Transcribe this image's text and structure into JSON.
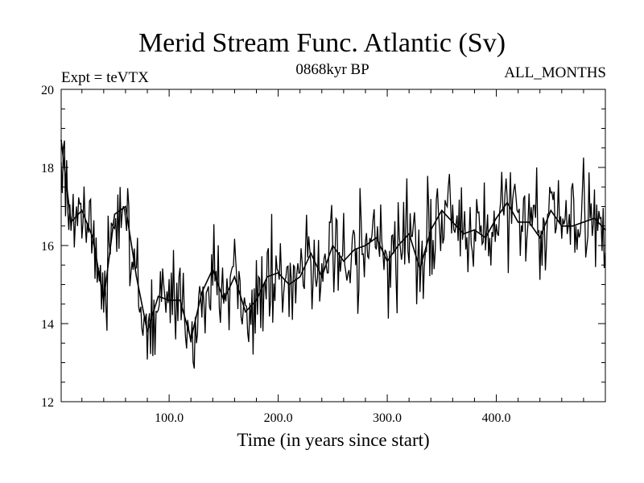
{
  "header": {
    "title": "Merid Stream Func. Atlantic (Sv)",
    "experiment": "Expt = teVTX",
    "period": "0868kyr BP",
    "months": "ALL_MONTHS"
  },
  "chart_data": {
    "type": "line",
    "title": "Merid Stream Func. Atlantic (Sv)",
    "xlabel": "Time (in years since start)",
    "ylabel": "",
    "xlim": [
      1,
      500
    ],
    "ylim": [
      12,
      20
    ],
    "xticks": [
      100,
      200,
      300,
      400
    ],
    "xtick_labels": [
      "100.0",
      "200.0",
      "300.0",
      "400.0"
    ],
    "yticks": [
      12,
      14,
      16,
      18,
      20
    ],
    "ytick_labels": [
      "12",
      "14",
      "16",
      "18",
      "20"
    ],
    "grid": false,
    "legend": "none",
    "series": [
      {
        "name": "teVTX",
        "x": [
          1,
          10,
          20,
          30,
          40,
          50,
          60,
          70,
          80,
          90,
          100,
          110,
          120,
          130,
          140,
          150,
          160,
          170,
          180,
          190,
          200,
          210,
          220,
          230,
          240,
          250,
          260,
          270,
          280,
          290,
          300,
          310,
          320,
          330,
          340,
          350,
          360,
          370,
          380,
          390,
          400,
          410,
          420,
          430,
          440,
          450,
          460,
          470,
          480,
          490,
          500
        ],
        "values": [
          18.7,
          16.6,
          16.9,
          16.2,
          14.6,
          16.8,
          17.0,
          15.2,
          13.8,
          14.7,
          14.6,
          14.6,
          13.6,
          14.8,
          15.4,
          14.6,
          15.2,
          14.3,
          14.6,
          15.2,
          15.3,
          15.0,
          15.2,
          15.8,
          15.2,
          16.0,
          15.6,
          15.9,
          16.0,
          16.2,
          15.6,
          16.0,
          16.3,
          15.4,
          16.4,
          16.9,
          16.6,
          16.3,
          16.4,
          16.2,
          16.7,
          17.1,
          16.6,
          16.6,
          16.2,
          16.9,
          16.5,
          16.5,
          16.6,
          16.7,
          16.4
        ]
      }
    ]
  }
}
